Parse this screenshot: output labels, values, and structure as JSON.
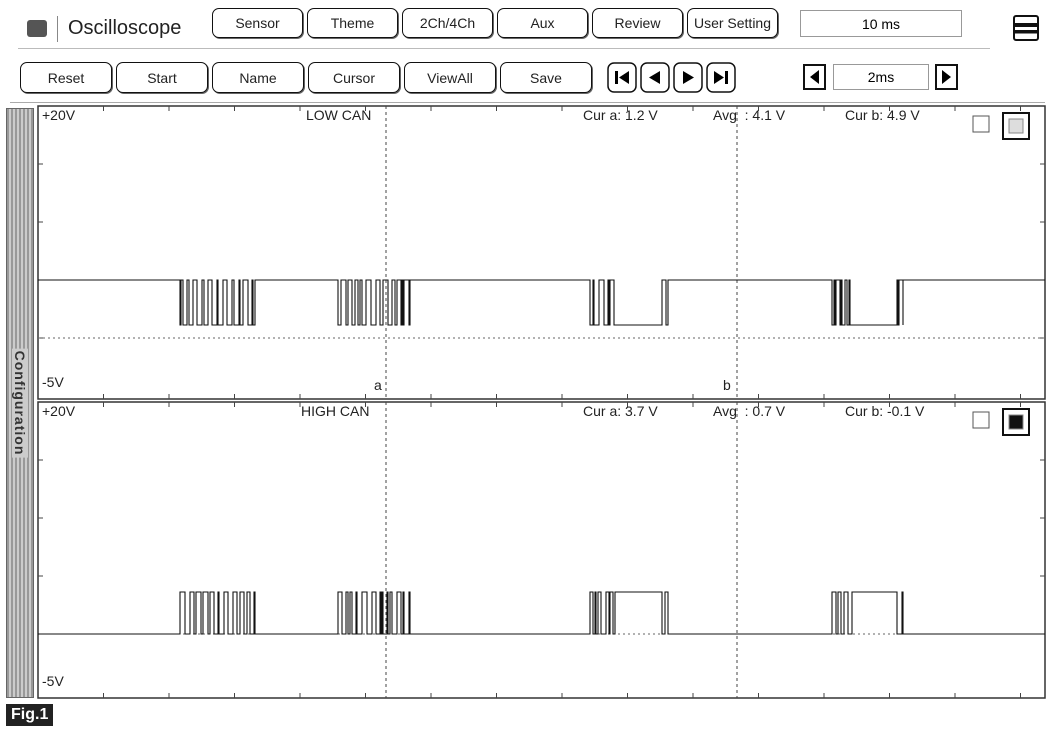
{
  "toolbar": {
    "title": "Oscilloscope",
    "buttons": [
      "Sensor",
      "Theme",
      "2Ch/4Ch",
      "Aux",
      "Review",
      "User Setting"
    ],
    "time_display": "10 ms"
  },
  "controls": {
    "buttons": [
      "Reset",
      "Start",
      "Name",
      "Cursor",
      "ViewAll",
      "Save"
    ],
    "timebase": "2ms"
  },
  "side_tab": "Configuration",
  "channels": [
    {
      "max": "+20V",
      "min": "-5V",
      "name": "LOW CAN",
      "cur_a": "Cur a: 1.2 V",
      "avg": "Avg  : 4.1 V",
      "cur_b": "Cur b: 4.9 V"
    },
    {
      "max": "+20V",
      "min": "-5V",
      "name": "HIGH CAN",
      "cur_a": "Cur a: 3.7 V",
      "avg": "Avg  : 0.7 V",
      "cur_b": "Cur b: -0.1 V"
    }
  ],
  "cursor_labels": [
    "a",
    "b"
  ],
  "figure_label": "Fig.1"
}
